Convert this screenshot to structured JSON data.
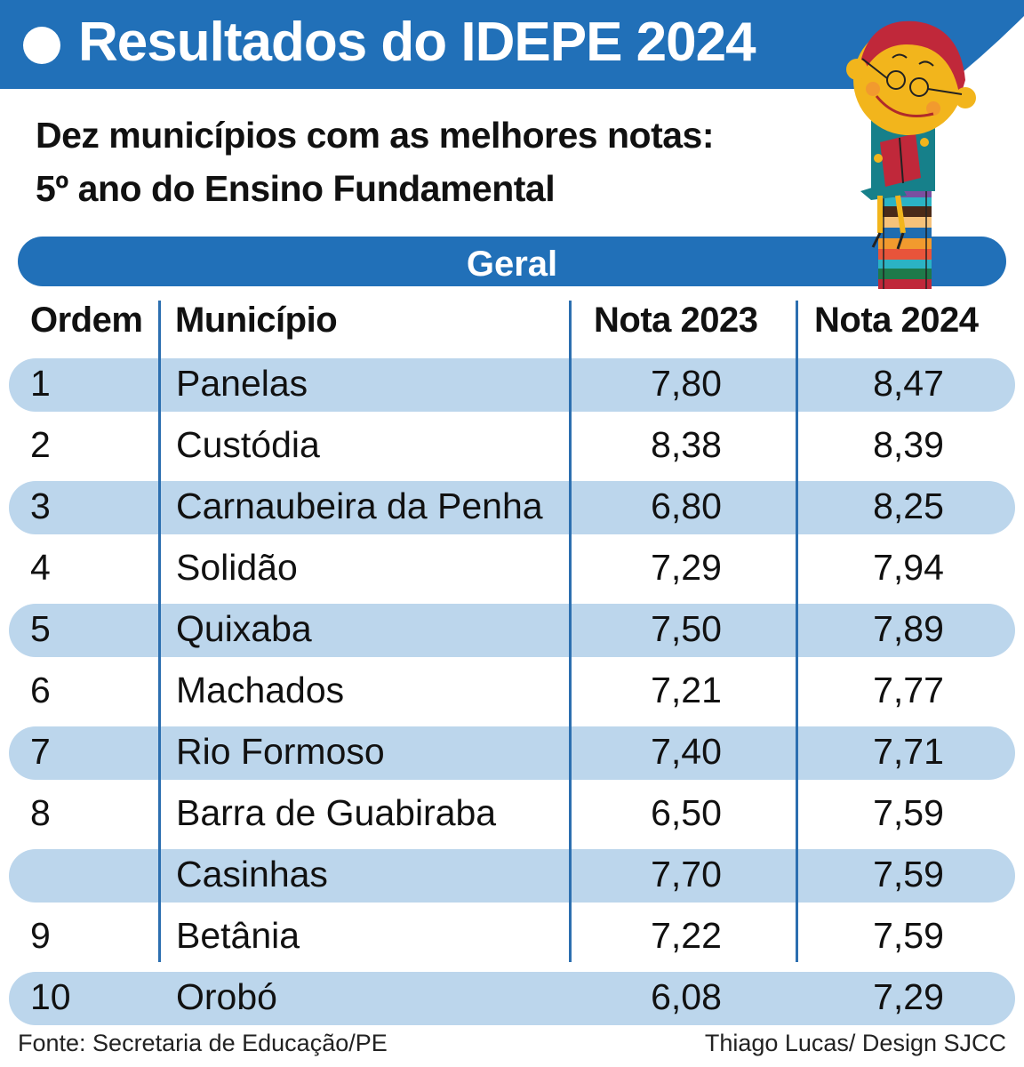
{
  "header": {
    "title": "Resultados do IDEPE 2024",
    "subtitle_line1": "Dez municípios com as melhores notas:",
    "subtitle_line2": "5º ano do Ensino Fundamental",
    "section_label": "Geral"
  },
  "colors": {
    "brand_blue": "#2170b8",
    "row_band": "#bcd6ec",
    "divider": "#2c6fb0"
  },
  "illustration": "boy-reading-book-on-stack-of-books",
  "chart_data": {
    "type": "table",
    "title": "Resultados do IDEPE 2024",
    "subtitle": "Dez municípios com as melhores notas: 5º ano do Ensino Fundamental",
    "section": "Geral",
    "columns": [
      "Ordem",
      "Município",
      "Nota 2023",
      "Nota 2024"
    ],
    "rows": [
      {
        "ordem": "1",
        "municipio": "Panelas",
        "nota_2023": "7,80",
        "nota_2024": "8,47"
      },
      {
        "ordem": "2",
        "municipio": "Custódia",
        "nota_2023": "8,38",
        "nota_2024": "8,39"
      },
      {
        "ordem": "3",
        "municipio": "Carnaubeira da Penha",
        "nota_2023": "6,80",
        "nota_2024": "8,25"
      },
      {
        "ordem": "4",
        "municipio": "Solidão",
        "nota_2023": "7,29",
        "nota_2024": "7,94"
      },
      {
        "ordem": "5",
        "municipio": "Quixaba",
        "nota_2023": "7,50",
        "nota_2024": "7,89"
      },
      {
        "ordem": "6",
        "municipio": "Machados",
        "nota_2023": "7,21",
        "nota_2024": "7,77"
      },
      {
        "ordem": "7",
        "municipio": "Rio Formoso",
        "nota_2023": "7,40",
        "nota_2024": "7,71"
      },
      {
        "ordem": "8",
        "municipio": "Barra de Guabiraba",
        "nota_2023": "6,50",
        "nota_2024": "7,59"
      },
      {
        "ordem": "",
        "municipio": "Casinhas",
        "nota_2023": "7,70",
        "nota_2024": "7,59"
      },
      {
        "ordem": "9",
        "municipio": "Betânia",
        "nota_2023": "7,22",
        "nota_2024": "7,59"
      },
      {
        "ordem": "10",
        "municipio": "Orobó",
        "nota_2023": "6,08",
        "nota_2024": "7,29"
      }
    ]
  },
  "footer": {
    "source": "Fonte: Secretaria de Educação/PE",
    "credit": "Thiago Lucas/ Design  SJCC"
  }
}
